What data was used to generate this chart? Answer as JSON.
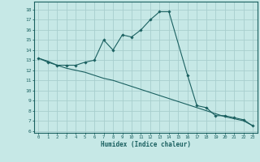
{
  "xlabel": "Humidex (Indice chaleur)",
  "bg_color": "#c6e8e6",
  "grid_color": "#a8cece",
  "line_color": "#1a6060",
  "xlim": [
    -0.5,
    23.5
  ],
  "ylim": [
    5.8,
    18.8
  ],
  "yticks": [
    6,
    7,
    8,
    9,
    10,
    11,
    12,
    13,
    14,
    15,
    16,
    17,
    18
  ],
  "xticks": [
    0,
    1,
    2,
    3,
    4,
    5,
    6,
    7,
    8,
    9,
    10,
    11,
    12,
    13,
    14,
    15,
    16,
    17,
    18,
    19,
    20,
    21,
    22,
    23
  ],
  "line1_x": [
    0,
    1,
    2,
    3,
    4,
    5,
    6,
    7,
    8,
    9,
    10,
    11,
    12,
    13,
    14,
    16,
    17,
    18,
    19,
    20,
    21,
    22,
    23
  ],
  "line1_y": [
    13.2,
    12.8,
    12.5,
    12.5,
    12.5,
    12.8,
    13.0,
    15.0,
    14.0,
    15.5,
    15.3,
    16.0,
    17.0,
    17.8,
    17.8,
    11.5,
    8.5,
    8.3,
    7.5,
    7.5,
    7.3,
    7.1,
    6.5
  ],
  "line2_x": [
    0,
    1,
    2,
    3,
    4,
    5,
    6,
    7,
    8,
    9,
    10,
    11,
    12,
    13,
    14,
    15,
    16,
    17,
    18,
    19,
    20,
    21,
    22,
    23
  ],
  "line2_y": [
    13.2,
    12.9,
    12.5,
    12.2,
    12.0,
    11.8,
    11.5,
    11.2,
    11.0,
    10.7,
    10.4,
    10.1,
    9.8,
    9.5,
    9.2,
    8.9,
    8.6,
    8.3,
    8.0,
    7.7,
    7.4,
    7.2,
    7.0,
    6.5
  ]
}
